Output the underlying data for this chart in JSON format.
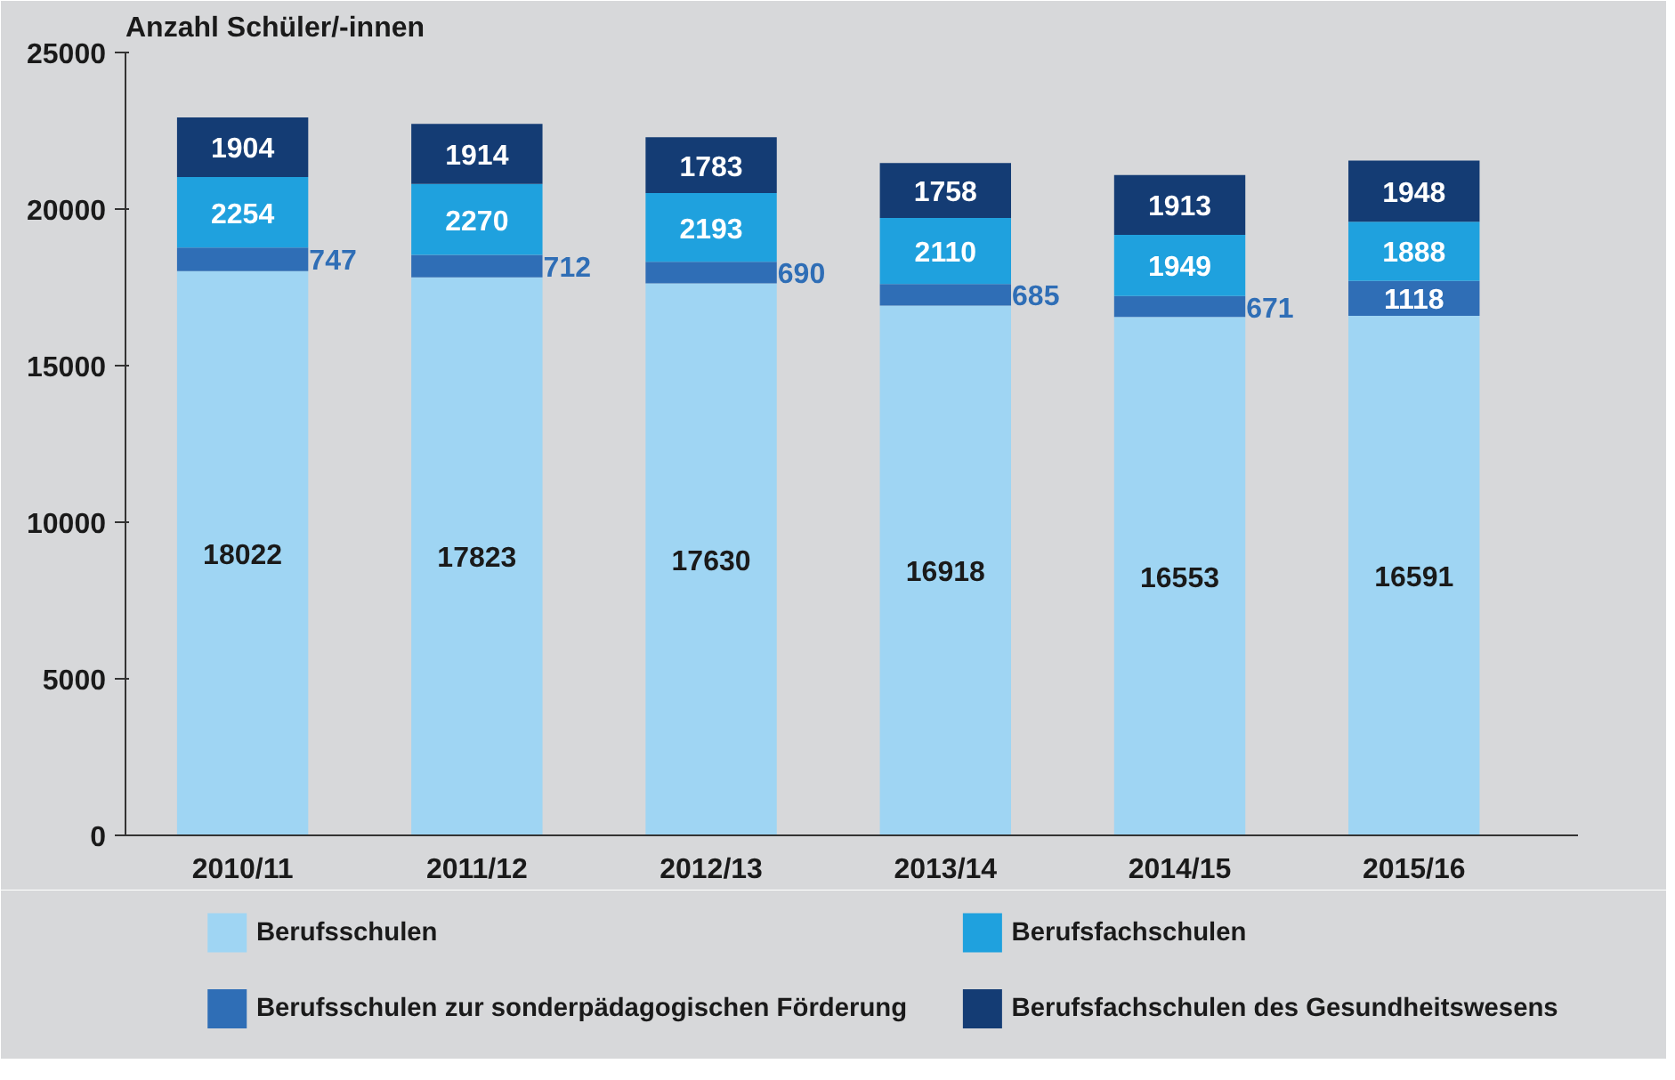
{
  "chart_data": {
    "type": "bar",
    "stacked": true,
    "ylabel": "Anzahl Schüler/-innen",
    "categories": [
      "2010/11",
      "2011/12",
      "2012/13",
      "2013/14",
      "2014/15",
      "2015/16"
    ],
    "series": [
      {
        "name": "Berufsschulen",
        "color": "#9fd5f3",
        "values": [
          18022,
          17823,
          17630,
          16918,
          16553,
          16591
        ]
      },
      {
        "name": "Berufsschulen zur sonderpädagogischen Förderung",
        "color": "#2f6eb6",
        "values": [
          747,
          712,
          690,
          685,
          671,
          1118
        ]
      },
      {
        "name": "Berufsfachschulen",
        "color": "#1fa1de",
        "values": [
          2254,
          2270,
          2193,
          2110,
          1949,
          1888
        ]
      },
      {
        "name": "Berufsfachschulen des Gesundheitswesens",
        "color": "#143c74",
        "values": [
          1904,
          1914,
          1783,
          1758,
          1913,
          1948
        ]
      }
    ],
    "ylim": [
      0,
      25000
    ],
    "yticks": [
      0,
      5000,
      10000,
      15000,
      20000,
      25000
    ],
    "grid": false,
    "legend": "bottom",
    "data_labels": true
  }
}
